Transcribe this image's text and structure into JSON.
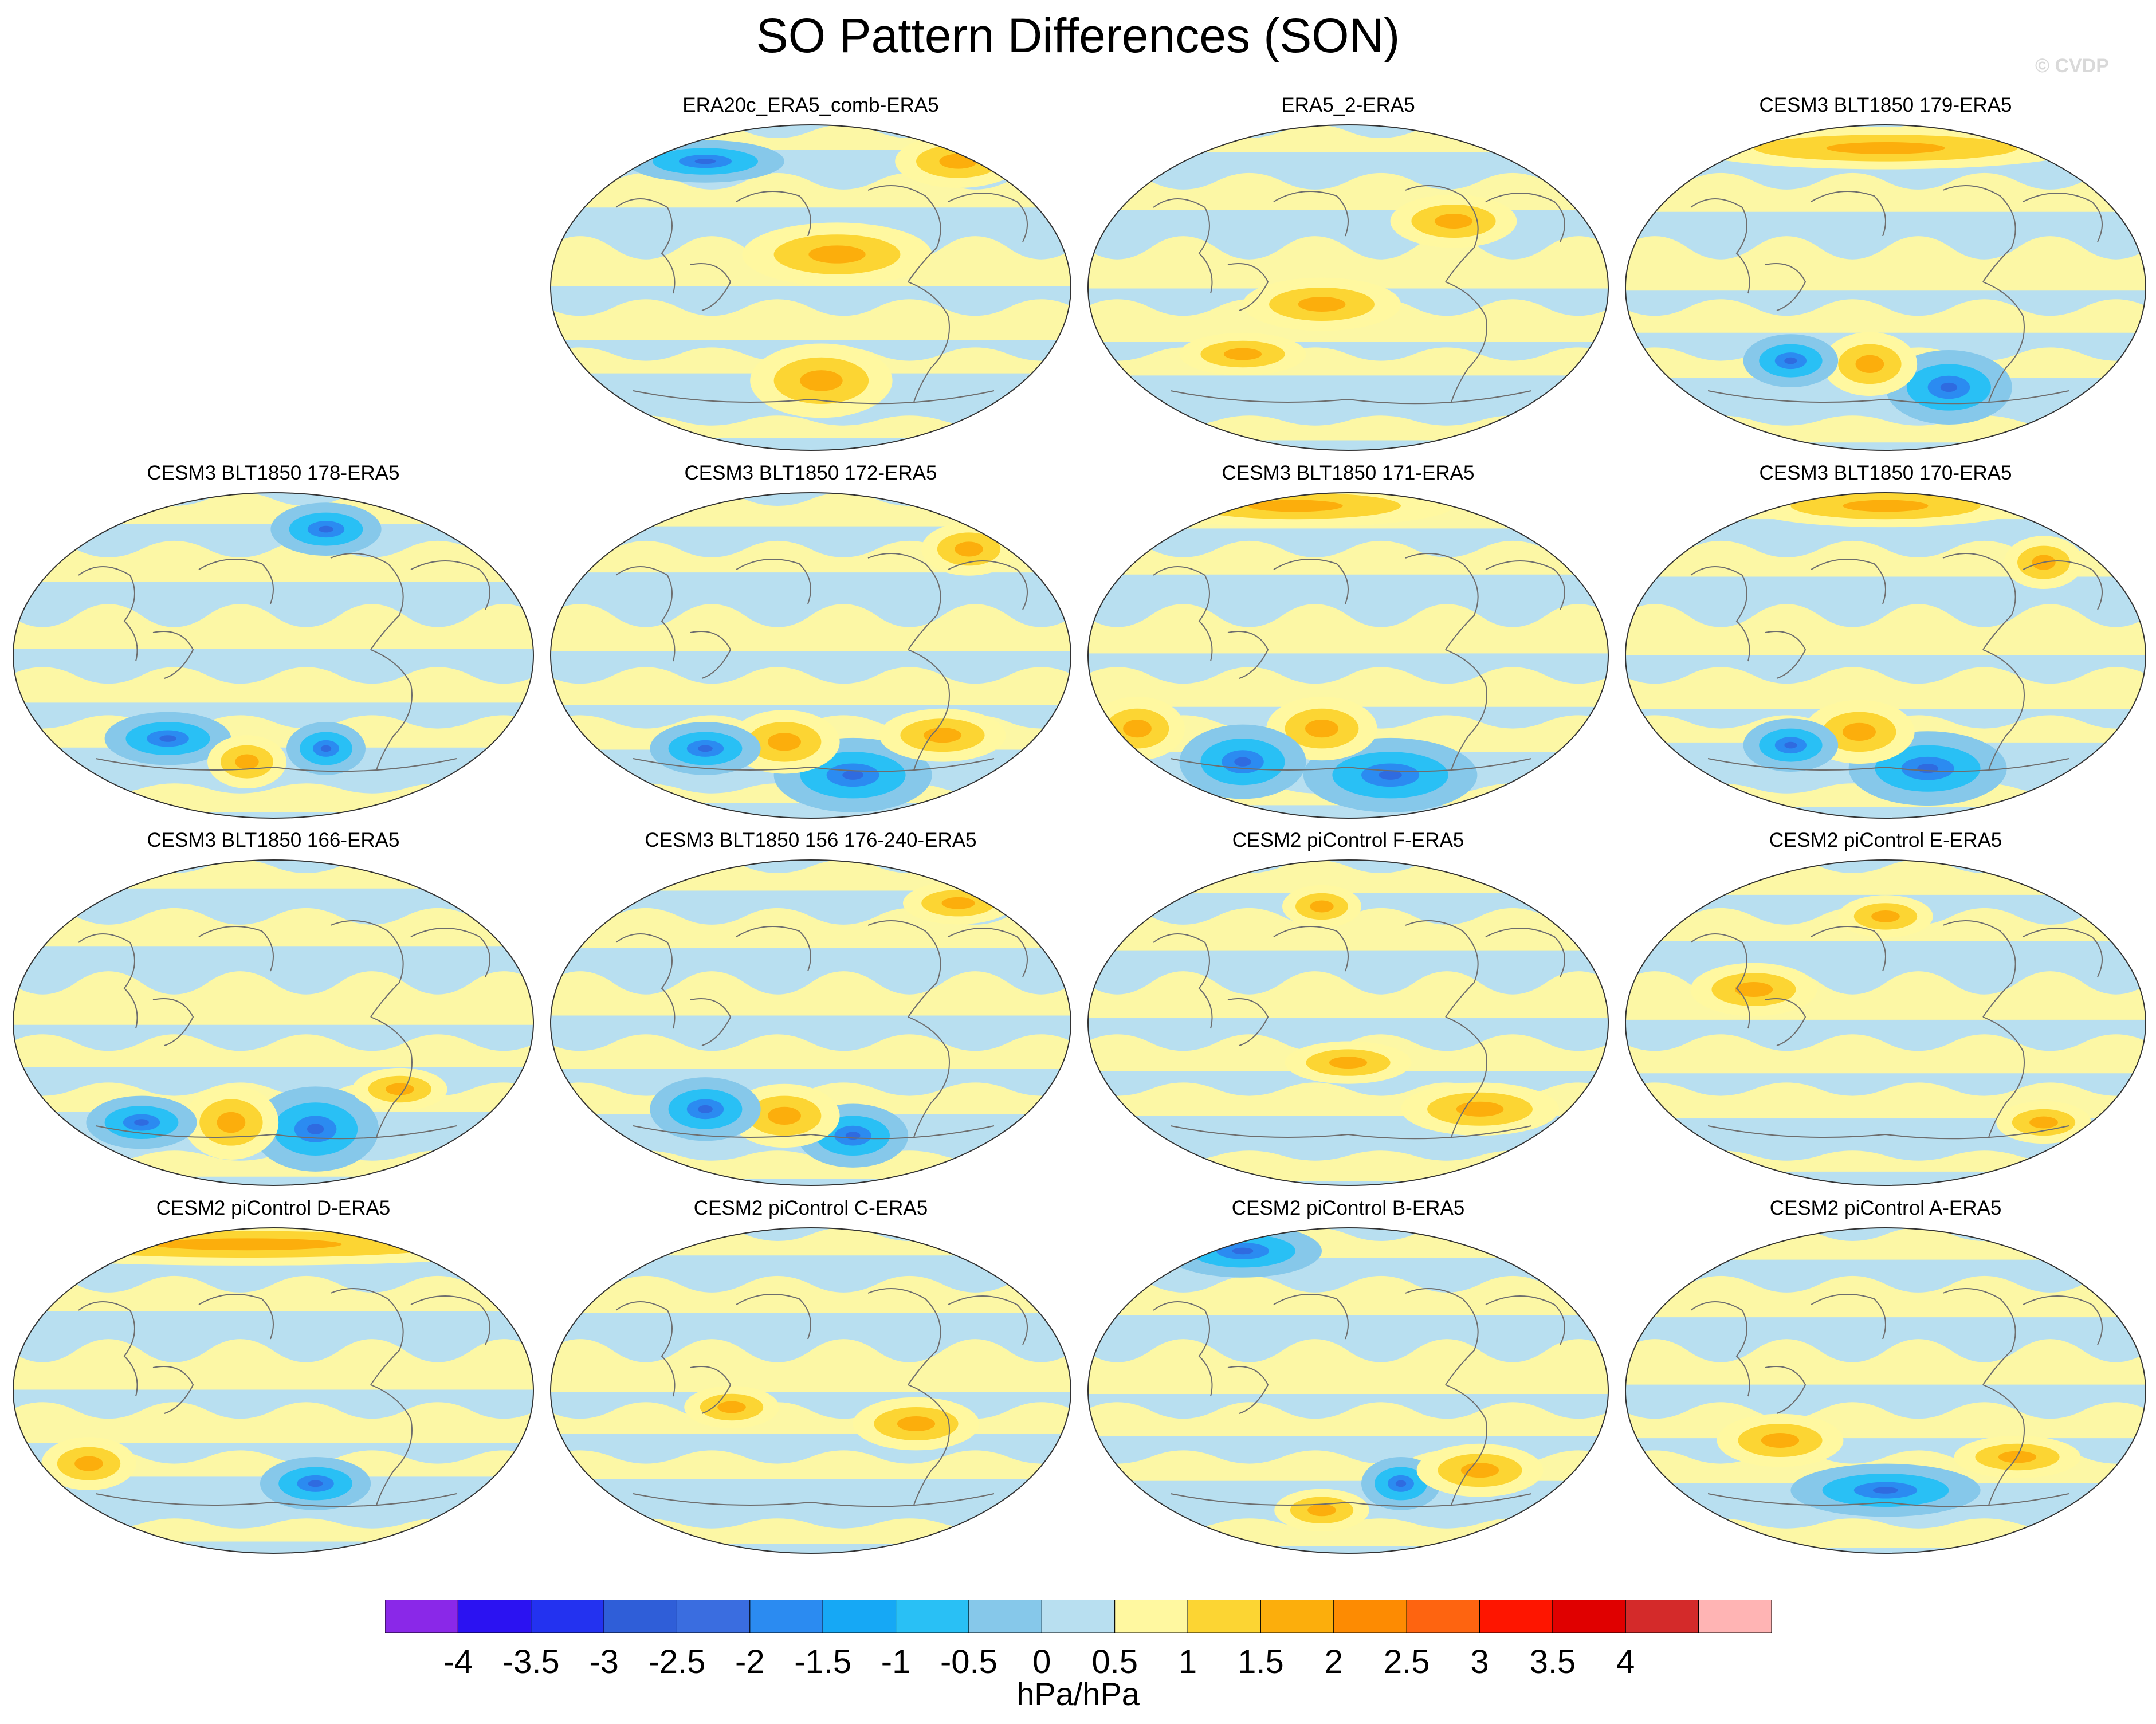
{
  "title": "SO Pattern Differences (SON)",
  "credit": "© CVDP",
  "colors": {
    "neg_light": "#b8dff0",
    "neg_mid": "#86c8ea",
    "neg_strong": "#29c0f5",
    "neg_deep": "#2b8bf1",
    "neg_core": "#2f6be0",
    "pos_light": "#fff8a0",
    "pos_mid": "#fcd533",
    "pos_strong": "#fcae0c",
    "pos_core": "#f7941a",
    "coast": "#6e6e6e"
  },
  "panels": [
    {
      "title": "ERA20c_ERA5_comb-ERA5"
    },
    {
      "title": "ERA5_2-ERA5"
    },
    {
      "title": "CESM3 BLT1850 179-ERA5"
    },
    {
      "title": "CESM3 BLT1850 178-ERA5"
    },
    {
      "title": "CESM3 BLT1850 172-ERA5"
    },
    {
      "title": "CESM3 BLT1850 171-ERA5"
    },
    {
      "title": "CESM3 BLT1850 170-ERA5"
    },
    {
      "title": "CESM3 BLT1850 166-ERA5"
    },
    {
      "title": "CESM3 BLT1850 156 176-240-ERA5"
    },
    {
      "title": "CESM2 piControl F-ERA5"
    },
    {
      "title": "CESM2 piControl E-ERA5"
    },
    {
      "title": "CESM2 piControl D-ERA5"
    },
    {
      "title": "CESM2 piControl C-ERA5"
    },
    {
      "title": "CESM2 piControl B-ERA5"
    },
    {
      "title": "CESM2 piControl A-ERA5"
    }
  ],
  "colorbar": {
    "label": "hPa/hPa",
    "tick_labels": [
      "-4",
      "-3.5",
      "-3",
      "-2.5",
      "-2",
      "-1.5",
      "-1",
      "-0.5",
      "0",
      "0.5",
      "1",
      "1.5",
      "2",
      "2.5",
      "3",
      "3.5",
      "4"
    ],
    "colors": [
      "#8a28e8",
      "#2b12f2",
      "#2332f0",
      "#2f5ed8",
      "#3a6de0",
      "#2b8bf1",
      "#16a8f5",
      "#29c0f5",
      "#86c8ea",
      "#b8dff0",
      "#fff8a0",
      "#fcd533",
      "#fcae0c",
      "#fd8b02",
      "#fe6410",
      "#fe1500",
      "#e00000",
      "#d42a2a",
      "#ffb4b4"
    ]
  }
}
